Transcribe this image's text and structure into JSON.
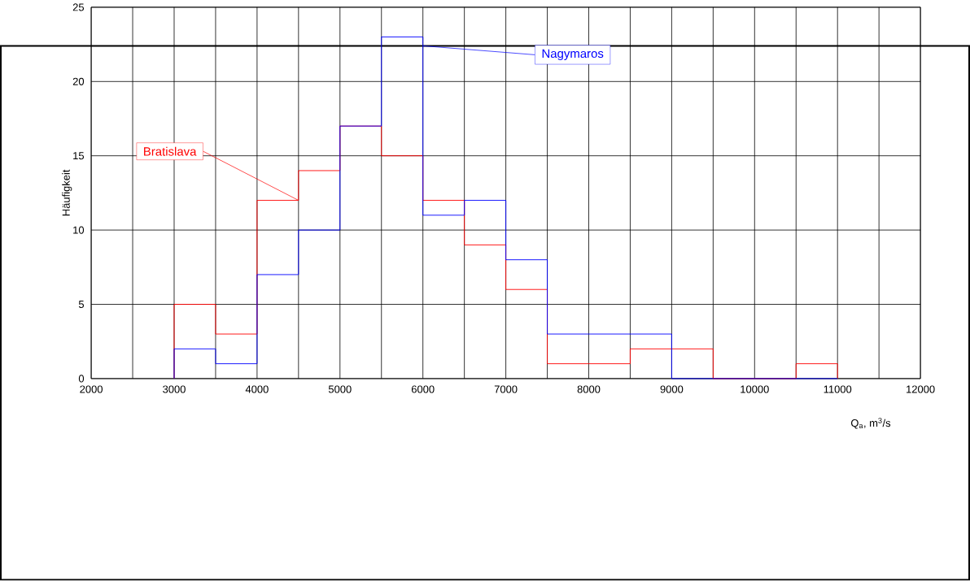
{
  "chart_data": {
    "type": "histogram",
    "xlabel": "Q$_{a}$,  m$^{3}$/s",
    "ylabel": "Häufigkeit",
    "bins": [
      3000,
      3500,
      4000,
      4500,
      5000,
      5500,
      6000,
      6500,
      7000,
      7500,
      8000,
      8500,
      9000,
      9500,
      10000,
      10500,
      11000
    ],
    "series": [
      {
        "name": "Bratislava",
        "color": "#ff0000",
        "values": [
          5,
          3,
          12,
          14,
          17,
          15,
          12,
          9,
          6,
          1,
          1,
          2,
          2,
          0,
          0,
          1
        ]
      },
      {
        "name": "Nagymaros",
        "color": "#0000ff",
        "values": [
          2,
          1,
          7,
          10,
          17,
          23,
          11,
          12,
          8,
          3,
          3,
          3,
          0,
          0,
          0,
          0
        ]
      }
    ],
    "xlim": [
      2000,
      12000
    ],
    "ylim": [
      0,
      25
    ],
    "xticks": [
      2000,
      {
        "value": 2500,
        "label": null
      },
      3000,
      {
        "value": 3500,
        "label": null
      },
      4000,
      {
        "value": 4500,
        "label": null
      },
      5000,
      {
        "value": 5500,
        "label": null
      },
      6000,
      {
        "value": 6500,
        "label": null
      },
      7000,
      {
        "value": 7500,
        "label": null
      },
      8000,
      {
        "value": 8500,
        "label": null
      },
      9000,
      {
        "value": 9500,
        "label": null
      },
      10000,
      {
        "value": 10500,
        "label": null
      },
      11000,
      {
        "value": 11500,
        "label": null
      },
      12000
    ],
    "yticks": [
      0,
      5,
      10,
      15,
      20,
      25
    ],
    "grid": true
  }
}
